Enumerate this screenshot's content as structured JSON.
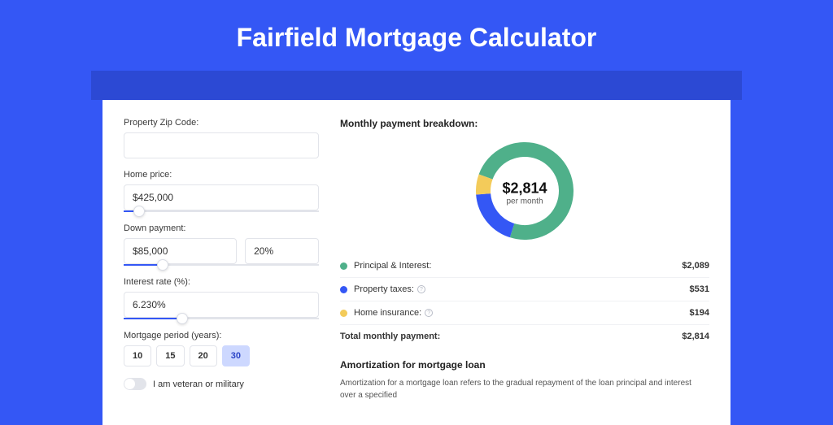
{
  "page": {
    "title": "Fairfield Mortgage Calculator"
  },
  "colors": {
    "page_bg": "#3457f5",
    "accent_bar": "#2c49d4",
    "card_bg": "#ffffff",
    "primary": "#3457f5",
    "principal": "#4fb08a",
    "taxes": "#3457f5",
    "insurance": "#f3cb5a",
    "border": "#e2e4ea"
  },
  "form": {
    "zip": {
      "label": "Property Zip Code:",
      "value": ""
    },
    "home_price": {
      "label": "Home price:",
      "value": "$425,000",
      "slider_pct": 8
    },
    "down_payment": {
      "label": "Down payment:",
      "value": "$85,000",
      "pct_value": "20%",
      "slider_pct": 20
    },
    "interest": {
      "label": "Interest rate (%):",
      "value": "6.230%",
      "slider_pct": 30
    },
    "period": {
      "label": "Mortgage period (years):",
      "options": [
        "10",
        "15",
        "20",
        "30"
      ],
      "selected": "30"
    },
    "veteran": {
      "label": "I am veteran or military",
      "checked": false
    }
  },
  "breakdown": {
    "heading": "Monthly payment breakdown:",
    "donut": {
      "amount": "$2,814",
      "sub": "per month",
      "slices": [
        {
          "key": "principal",
          "pct": 74.2,
          "color": "#4fb08a"
        },
        {
          "key": "taxes",
          "pct": 18.9,
          "color": "#3457f5"
        },
        {
          "key": "insurance",
          "pct": 6.9,
          "color": "#f3cb5a"
        }
      ],
      "size": 120,
      "stroke": 18
    },
    "items": [
      {
        "label": "Principal & Interest:",
        "value": "$2,089",
        "color": "#4fb08a",
        "info": false
      },
      {
        "label": "Property taxes:",
        "value": "$531",
        "color": "#3457f5",
        "info": true
      },
      {
        "label": "Home insurance:",
        "value": "$194",
        "color": "#f3cb5a",
        "info": true
      }
    ],
    "total": {
      "label": "Total monthly payment:",
      "value": "$2,814"
    }
  },
  "amortization": {
    "heading": "Amortization for mortgage loan",
    "text": "Amortization for a mortgage loan refers to the gradual repayment of the loan principal and interest over a specified"
  }
}
